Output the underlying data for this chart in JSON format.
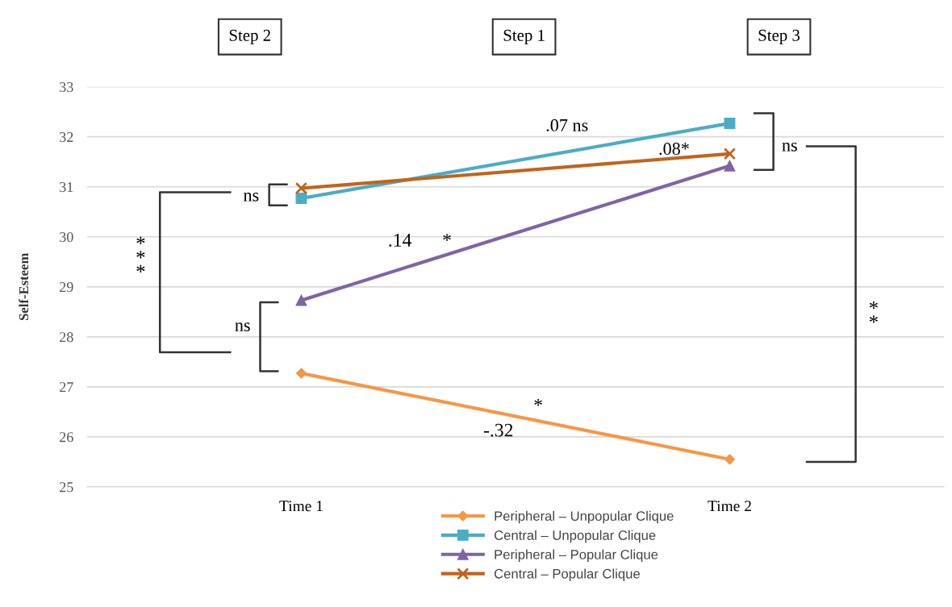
{
  "chart_data": {
    "type": "line",
    "ylabel": "Self-Esteem",
    "categories": [
      "Time 1",
      "Time 2"
    ],
    "series": [
      {
        "name": "Peripheral – Unpopular Clique",
        "color": "#f79646",
        "marker": "diamond",
        "values": [
          27.27,
          25.55
        ]
      },
      {
        "name": "Central – Unpopular Clique",
        "color": "#4bacc6",
        "marker": "square",
        "values": [
          30.77,
          32.27
        ]
      },
      {
        "name": "Peripheral – Popular Clique",
        "color": "#8064a2",
        "marker": "triangle",
        "values": [
          28.73,
          31.42
        ]
      },
      {
        "name": "Central – Popular Clique",
        "color": "#c0651c",
        "marker": "cross",
        "values": [
          30.97,
          31.66
        ]
      }
    ],
    "ylim": [
      25,
      33
    ],
    "yticks": [
      25,
      26,
      27,
      28,
      29,
      30,
      31,
      32,
      33
    ],
    "grid": "y",
    "legend": "bottom",
    "line_style": "solid",
    "annotations": [
      "Step 2",
      "Step 1",
      "Step 3",
      ".07 ns",
      ".08*",
      "ns",
      "ns",
      "***",
      ".14",
      "*",
      "ns",
      "*",
      "-.32",
      "**"
    ]
  }
}
